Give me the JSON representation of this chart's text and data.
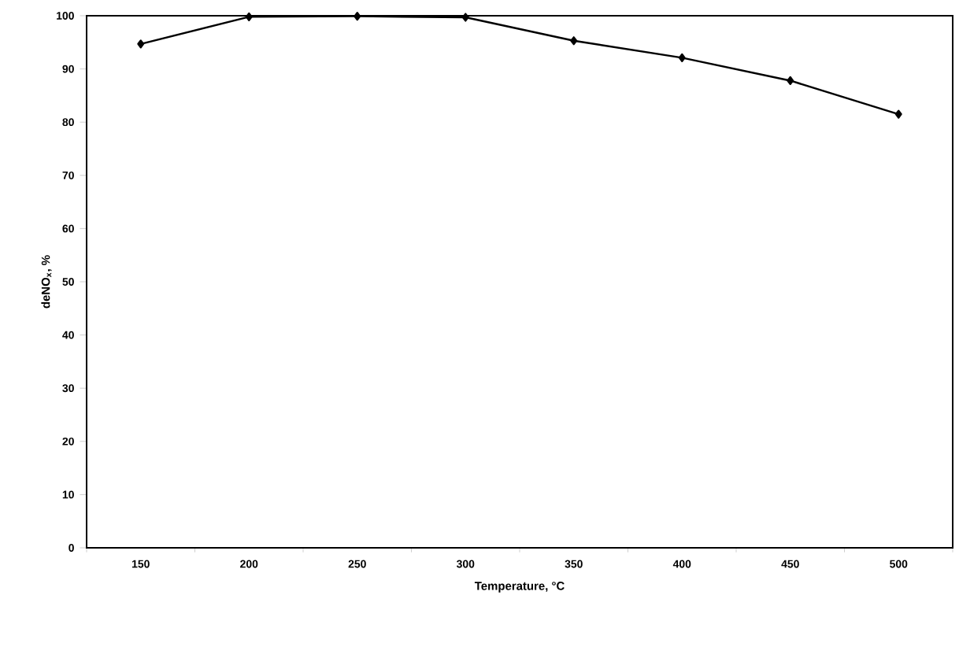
{
  "chart_data": {
    "type": "line",
    "xlabel": "Temperature, °C",
    "ylabel": "deNO$_{x}$, %",
    "categories": [
      "150",
      "200",
      "250",
      "300",
      "350",
      "400",
      "450",
      "500"
    ],
    "series": [
      {
        "color": "#000000",
        "values": [
          94.7,
          99.8,
          99.9,
          99.7,
          95.3,
          92.1,
          87.8,
          81.5
        ]
      }
    ],
    "ylim": [
      0,
      100
    ],
    "yticks": [
      0,
      10,
      20,
      30,
      40,
      50,
      60,
      70,
      80,
      90,
      100
    ],
    "marker": "diamond",
    "line_style": "solid",
    "grid": false
  }
}
